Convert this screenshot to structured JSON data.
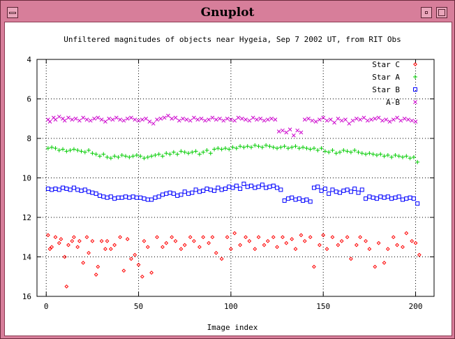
{
  "window": {
    "title": "Gnuplot"
  },
  "chart_data": {
    "type": "scatter",
    "title": "Unfiltered magnitudes of objects near Hygeia, Sep 7 2002 UT, from RIT Obs",
    "xlabel": "Image index",
    "ylabel": "",
    "xlim": [
      -5,
      210
    ],
    "ylim": [
      16,
      4
    ],
    "y_reversed": true,
    "grid": true,
    "legend_position": "top-right",
    "xticks": [
      "0",
      "50",
      "100",
      "150",
      "200"
    ],
    "yticks": [
      "4",
      "6",
      "8",
      "10",
      "12",
      "14",
      "16"
    ],
    "series": [
      {
        "name": "Star C",
        "color": "#ff0000",
        "marker": "diamond",
        "x": [
          1,
          2,
          3,
          5,
          7,
          8,
          10,
          11,
          12,
          14,
          15,
          17,
          18,
          20,
          22,
          23,
          25,
          27,
          28,
          30,
          32,
          33,
          35,
          37,
          40,
          42,
          44,
          46,
          48,
          50,
          52,
          53,
          55,
          57,
          60,
          63,
          65,
          68,
          70,
          73,
          75,
          78,
          80,
          83,
          85,
          88,
          90,
          92,
          95,
          98,
          100,
          102,
          105,
          108,
          110,
          113,
          115,
          118,
          120,
          123,
          125,
          128,
          130,
          133,
          135,
          138,
          140,
          143,
          145,
          148,
          150,
          152,
          155,
          158,
          160,
          163,
          165,
          168,
          170,
          173,
          175,
          178,
          180,
          183,
          185,
          188,
          190,
          193,
          195,
          198,
          200,
          202
        ],
        "y": [
          12.9,
          13.6,
          13.5,
          13.0,
          13.3,
          13.1,
          14.0,
          15.5,
          13.4,
          13.2,
          13.0,
          13.5,
          13.2,
          14.3,
          13.0,
          13.8,
          13.2,
          14.9,
          14.5,
          13.2,
          13.6,
          13.2,
          13.6,
          13.4,
          13.0,
          14.7,
          13.1,
          14.1,
          13.9,
          14.4,
          15.0,
          13.2,
          13.5,
          14.8,
          13.0,
          13.5,
          13.3,
          13.0,
          13.2,
          13.6,
          13.4,
          13.0,
          13.2,
          13.5,
          13.0,
          13.3,
          13.0,
          13.8,
          14.1,
          13.0,
          13.6,
          12.8,
          13.4,
          13.0,
          13.2,
          13.6,
          13.0,
          13.4,
          13.2,
          13.0,
          13.5,
          13.0,
          13.3,
          13.1,
          13.6,
          12.9,
          13.2,
          13.0,
          14.5,
          13.4,
          12.9,
          13.6,
          13.0,
          13.4,
          13.2,
          13.0,
          14.1,
          13.4,
          13.0,
          13.2,
          13.6,
          14.5,
          13.3,
          14.3,
          13.6,
          13.0,
          13.4,
          13.5,
          12.8,
          13.2,
          13.3,
          13.9
        ]
      },
      {
        "name": "Star A",
        "color": "#00cc00",
        "marker": "plus",
        "x": [
          1,
          3,
          5,
          7,
          9,
          11,
          13,
          15,
          17,
          19,
          21,
          23,
          25,
          27,
          29,
          31,
          33,
          35,
          37,
          39,
          41,
          43,
          45,
          47,
          49,
          51,
          53,
          55,
          57,
          59,
          61,
          63,
          65,
          67,
          69,
          71,
          73,
          75,
          77,
          79,
          81,
          83,
          85,
          87,
          89,
          91,
          93,
          95,
          97,
          99,
          101,
          103,
          105,
          107,
          109,
          111,
          113,
          115,
          117,
          119,
          121,
          123,
          125,
          127,
          129,
          131,
          133,
          135,
          137,
          139,
          141,
          143,
          145,
          147,
          149,
          151,
          153,
          155,
          157,
          159,
          161,
          163,
          165,
          167,
          169,
          171,
          173,
          175,
          177,
          179,
          181,
          183,
          185,
          187,
          189,
          191,
          193,
          195,
          197,
          199,
          201
        ],
        "y": [
          8.5,
          8.45,
          8.5,
          8.6,
          8.55,
          8.65,
          8.6,
          8.55,
          8.6,
          8.65,
          8.7,
          8.6,
          8.75,
          8.8,
          8.9,
          8.8,
          8.95,
          9.0,
          8.9,
          8.95,
          8.85,
          8.9,
          8.95,
          8.9,
          8.85,
          8.9,
          9.0,
          8.95,
          8.9,
          8.85,
          8.8,
          8.9,
          8.75,
          8.8,
          8.7,
          8.8,
          8.65,
          8.7,
          8.75,
          8.7,
          8.65,
          8.8,
          8.7,
          8.6,
          8.75,
          8.55,
          8.5,
          8.55,
          8.5,
          8.55,
          8.45,
          8.5,
          8.4,
          8.45,
          8.4,
          8.45,
          8.35,
          8.4,
          8.45,
          8.35,
          8.4,
          8.45,
          8.5,
          8.45,
          8.4,
          8.5,
          8.45,
          8.4,
          8.5,
          8.45,
          8.5,
          8.55,
          8.5,
          8.6,
          8.5,
          8.65,
          8.7,
          8.6,
          8.75,
          8.7,
          8.6,
          8.65,
          8.7,
          8.6,
          8.7,
          8.75,
          8.8,
          8.75,
          8.8,
          8.85,
          8.8,
          8.9,
          8.85,
          8.95,
          8.85,
          8.9,
          8.95,
          8.9,
          9.0,
          8.95,
          9.2
        ]
      },
      {
        "name": "Star B",
        "color": "#0000ff",
        "marker": "square",
        "x": [
          1,
          3,
          5,
          7,
          9,
          11,
          13,
          15,
          17,
          19,
          21,
          23,
          25,
          27,
          29,
          31,
          33,
          35,
          37,
          39,
          41,
          43,
          45,
          47,
          49,
          51,
          53,
          55,
          57,
          59,
          61,
          63,
          65,
          67,
          69,
          71,
          73,
          75,
          77,
          79,
          81,
          83,
          85,
          87,
          89,
          91,
          93,
          95,
          97,
          99,
          101,
          103,
          105,
          107,
          109,
          111,
          113,
          115,
          117,
          119,
          121,
          123,
          125,
          127,
          129,
          131,
          133,
          135,
          137,
          139,
          141,
          143,
          145,
          147,
          149,
          151,
          153,
          155,
          157,
          159,
          161,
          163,
          165,
          167,
          169,
          171,
          173,
          175,
          177,
          179,
          181,
          183,
          185,
          187,
          189,
          191,
          193,
          195,
          197,
          199,
          201
        ],
        "y": [
          10.55,
          10.6,
          10.55,
          10.6,
          10.5,
          10.55,
          10.6,
          10.5,
          10.6,
          10.65,
          10.6,
          10.7,
          10.75,
          10.8,
          10.9,
          10.95,
          11.0,
          10.95,
          11.05,
          11.0,
          11.0,
          10.95,
          11.0,
          10.95,
          11.0,
          11.0,
          11.05,
          11.1,
          11.1,
          11.0,
          10.95,
          10.85,
          10.8,
          10.75,
          10.8,
          10.9,
          10.85,
          10.7,
          10.8,
          10.75,
          10.6,
          10.7,
          10.65,
          10.55,
          10.6,
          10.65,
          10.5,
          10.6,
          10.55,
          10.45,
          10.5,
          10.4,
          10.55,
          10.3,
          10.45,
          10.4,
          10.5,
          10.45,
          10.35,
          10.5,
          10.45,
          10.4,
          10.5,
          10.6,
          11.15,
          11.05,
          11.0,
          11.1,
          11.05,
          11.15,
          11.1,
          11.2,
          10.5,
          10.45,
          10.65,
          10.55,
          10.8,
          10.6,
          10.7,
          10.75,
          10.65,
          10.6,
          10.7,
          10.55,
          10.75,
          10.6,
          11.05,
          10.95,
          11.0,
          11.05,
          10.95,
          11.0,
          10.95,
          11.05,
          11.0,
          10.95,
          11.1,
          11.05,
          11.0,
          11.05,
          11.3
        ]
      },
      {
        "name": "A-B",
        "color": "#cc00cc",
        "marker": "cross",
        "x": [
          1,
          2,
          4,
          5,
          7,
          9,
          10,
          12,
          14,
          16,
          18,
          20,
          22,
          24,
          26,
          28,
          30,
          32,
          34,
          36,
          38,
          40,
          42,
          44,
          46,
          48,
          50,
          52,
          54,
          56,
          58,
          60,
          62,
          64,
          66,
          68,
          70,
          72,
          74,
          76,
          78,
          80,
          82,
          84,
          86,
          88,
          90,
          92,
          94,
          96,
          98,
          100,
          102,
          104,
          106,
          108,
          110,
          112,
          114,
          116,
          118,
          120,
          122,
          124,
          126,
          128,
          130,
          132,
          134,
          136,
          138,
          140,
          142,
          144,
          146,
          148,
          150,
          152,
          154,
          156,
          158,
          160,
          162,
          164,
          166,
          168,
          170,
          172,
          174,
          176,
          178,
          180,
          182,
          184,
          186,
          188,
          190,
          192,
          194,
          196,
          198,
          200
        ],
        "y": [
          7.05,
          7.15,
          6.95,
          7.05,
          6.9,
          7.0,
          7.1,
          6.95,
          7.05,
          7.0,
          7.1,
          6.95,
          7.05,
          7.1,
          7.0,
          6.95,
          7.05,
          7.15,
          7.0,
          7.05,
          6.95,
          7.05,
          7.1,
          7.0,
          6.95,
          7.05,
          7.1,
          7.05,
          7.0,
          7.15,
          7.25,
          7.05,
          7.0,
          6.95,
          6.85,
          7.0,
          6.95,
          7.1,
          7.0,
          7.05,
          7.1,
          6.95,
          7.05,
          7.0,
          7.1,
          7.05,
          6.95,
          7.05,
          7.0,
          7.1,
          7.0,
          7.05,
          7.1,
          6.95,
          7.0,
          7.05,
          7.1,
          6.95,
          7.05,
          7.0,
          7.1,
          7.05,
          7.0,
          7.05,
          7.65,
          7.6,
          7.7,
          7.55,
          7.85,
          7.6,
          7.7,
          7.05,
          7.0,
          7.1,
          7.15,
          7.05,
          6.95,
          7.1,
          7.05,
          7.2,
          7.0,
          7.1,
          7.05,
          7.25,
          7.1,
          7.0,
          7.05,
          6.95,
          7.1,
          7.05,
          7.0,
          6.95,
          7.1,
          7.05,
          7.15,
          7.05,
          6.95,
          7.1,
          7.0,
          7.05,
          7.1,
          7.15
        ]
      }
    ]
  }
}
